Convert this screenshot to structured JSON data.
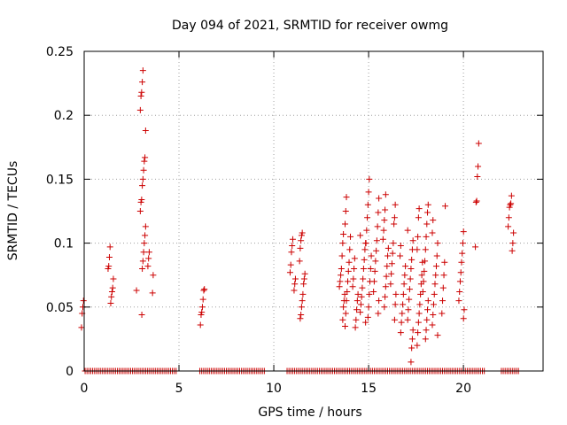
{
  "chart_data": {
    "type": "scatter",
    "title": "Day 094 of 2021, SRMTID for receiver owmg",
    "xlabel": "GPS time / hours",
    "ylabel": "SRMTID / TECUs",
    "xlim": [
      0,
      24.2
    ],
    "ylim": [
      0,
      0.25
    ],
    "grid": true,
    "marker": "+",
    "color": "#cc0000",
    "xticks": [
      0,
      5,
      10,
      15,
      20
    ],
    "xtick_labels": [
      "0",
      "5",
      "10",
      "15",
      "20"
    ],
    "yticks": [
      0,
      0.05,
      0.1,
      0.15,
      0.2,
      0.25
    ],
    "ytick_labels": [
      "0",
      "0.05",
      "0.1",
      "0.15",
      "0.2",
      "0.25"
    ],
    "clusters": [
      {
        "x": 0.0,
        "y": [
          0.034,
          0.045,
          0.05,
          0.055
        ]
      },
      {
        "x": 1.4,
        "y": [
          0.053,
          0.058,
          0.062,
          0.065,
          0.072,
          0.08,
          0.082,
          0.089,
          0.097
        ]
      },
      {
        "x": 2.9,
        "y": [
          0.044,
          0.063
        ]
      },
      {
        "x": 3.1,
        "y": [
          0.08,
          0.086,
          0.093,
          0.1,
          0.106,
          0.113,
          0.125,
          0.132,
          0.134,
          0.145,
          0.15,
          0.157,
          0.164,
          0.167,
          0.188,
          0.204,
          0.215,
          0.218,
          0.226,
          0.235
        ]
      },
      {
        "x": 3.5,
        "y": [
          0.061,
          0.075,
          0.082,
          0.088,
          0.093
        ]
      },
      {
        "x": 6.2,
        "y": [
          0.036,
          0.044,
          0.046,
          0.05,
          0.056,
          0.063,
          0.064
        ]
      },
      {
        "x": 11.0,
        "y": [
          0.063,
          0.068,
          0.072,
          0.077,
          0.083,
          0.093,
          0.098,
          0.103
        ]
      },
      {
        "x": 11.5,
        "y": [
          0.041,
          0.044,
          0.05,
          0.055,
          0.06,
          0.068,
          0.072,
          0.076,
          0.086,
          0.096,
          0.102,
          0.106,
          0.108
        ]
      },
      {
        "x": 13.6,
        "y": [
          0.04,
          0.05,
          0.055,
          0.06,
          0.066,
          0.07,
          0.075,
          0.08,
          0.09,
          0.1,
          0.107
        ]
      },
      {
        "x": 13.9,
        "y": [
          0.035,
          0.045,
          0.055,
          0.062,
          0.07,
          0.078,
          0.085,
          0.095,
          0.105,
          0.115,
          0.125,
          0.136
        ]
      },
      {
        "x": 14.3,
        "y": [
          0.034,
          0.04,
          0.048,
          0.055,
          0.06,
          0.066,
          0.072,
          0.08,
          0.088
        ]
      },
      {
        "x": 14.7,
        "y": [
          0.038,
          0.046,
          0.052,
          0.058,
          0.065,
          0.072,
          0.08,
          0.087,
          0.095,
          0.1,
          0.106
        ]
      },
      {
        "x": 15.0,
        "y": [
          0.042,
          0.05,
          0.06,
          0.07,
          0.08,
          0.09,
          0.1,
          0.11,
          0.12,
          0.13,
          0.14,
          0.15
        ]
      },
      {
        "x": 15.4,
        "y": [
          0.045,
          0.055,
          0.062,
          0.07,
          0.078,
          0.086,
          0.094,
          0.102,
          0.113,
          0.124,
          0.135
        ]
      },
      {
        "x": 15.9,
        "y": [
          0.05,
          0.058,
          0.066,
          0.074,
          0.082,
          0.09,
          0.096,
          0.103,
          0.11,
          0.118,
          0.126,
          0.138
        ]
      },
      {
        "x": 16.3,
        "y": [
          0.04,
          0.052,
          0.06,
          0.068,
          0.076,
          0.084,
          0.092,
          0.1,
          0.115,
          0.12,
          0.13
        ]
      },
      {
        "x": 16.8,
        "y": [
          0.03,
          0.038,
          0.045,
          0.052,
          0.06,
          0.068,
          0.075,
          0.082,
          0.09,
          0.098
        ]
      },
      {
        "x": 17.2,
        "y": [
          0.007,
          0.018,
          0.025,
          0.032,
          0.04,
          0.048,
          0.056,
          0.064,
          0.072,
          0.08,
          0.087,
          0.095,
          0.102,
          0.11
        ]
      },
      {
        "x": 17.7,
        "y": [
          0.02,
          0.03,
          0.038,
          0.045,
          0.052,
          0.06,
          0.068,
          0.075,
          0.085,
          0.095,
          0.105,
          0.12,
          0.127
        ]
      },
      {
        "x": 18.0,
        "y": [
          0.025,
          0.032,
          0.04,
          0.048,
          0.055,
          0.062,
          0.07,
          0.078,
          0.086,
          0.095,
          0.105,
          0.115,
          0.124,
          0.13
        ]
      },
      {
        "x": 18.5,
        "y": [
          0.028,
          0.036,
          0.044,
          0.052,
          0.06,
          0.068,
          0.075,
          0.082,
          0.09,
          0.1,
          0.108,
          0.118
        ]
      },
      {
        "x": 18.9,
        "y": [
          0.045,
          0.055,
          0.065,
          0.075,
          0.085,
          0.129
        ]
      },
      {
        "x": 19.9,
        "y": [
          0.041,
          0.048,
          0.055,
          0.062,
          0.07,
          0.077,
          0.085,
          0.092,
          0.1,
          0.109
        ]
      },
      {
        "x": 20.7,
        "y": [
          0.097,
          0.132,
          0.133,
          0.152,
          0.16,
          0.178
        ]
      },
      {
        "x": 22.5,
        "y": [
          0.094,
          0.1,
          0.108,
          0.113,
          0.12,
          0.128,
          0.13,
          0.131,
          0.137
        ]
      }
    ],
    "zero_points": [
      0.05,
      0.15,
      0.25,
      0.35,
      0.45,
      0.55,
      0.65,
      0.75,
      0.85,
      0.95,
      1.05,
      1.15,
      1.25,
      1.35,
      1.45,
      1.55,
      1.65,
      1.75,
      1.85,
      1.95,
      2.05,
      2.15,
      2.25,
      2.35,
      2.45,
      2.55,
      2.65,
      2.75,
      2.85,
      2.95,
      3.05,
      3.15,
      3.25,
      3.35,
      3.45,
      3.55,
      3.65,
      3.75,
      3.85,
      3.95,
      4.05,
      4.15,
      4.25,
      4.35,
      4.45,
      4.55,
      4.65,
      4.75,
      4.85,
      6.1,
      6.2,
      6.3,
      6.4,
      6.5,
      6.6,
      6.7,
      6.8,
      6.9,
      7.0,
      7.1,
      7.2,
      7.3,
      7.4,
      7.5,
      7.6,
      7.7,
      7.8,
      7.9,
      8.0,
      8.1,
      8.2,
      8.3,
      8.4,
      8.5,
      8.6,
      8.7,
      8.8,
      8.9,
      9.0,
      9.1,
      9.2,
      9.3,
      9.4,
      9.5,
      10.7,
      10.8,
      10.9,
      11.0,
      11.1,
      11.2,
      11.3,
      11.4,
      11.5,
      11.6,
      11.7,
      11.8,
      11.9,
      12.0,
      12.1,
      12.2,
      12.3,
      12.4,
      12.5,
      12.6,
      12.7,
      12.8,
      12.9,
      13.0,
      13.1,
      13.2,
      13.3,
      13.4,
      13.5,
      13.6,
      13.7,
      13.8,
      13.9,
      14.0,
      14.1,
      14.2,
      14.3,
      14.4,
      14.5,
      14.6,
      14.7,
      14.8,
      14.9,
      15.0,
      15.1,
      15.2,
      15.3,
      15.4,
      15.5,
      15.6,
      15.7,
      15.8,
      15.9,
      16.0,
      16.1,
      16.2,
      16.3,
      16.4,
      16.5,
      16.6,
      16.7,
      16.8,
      16.9,
      17.0,
      17.1,
      17.2,
      17.3,
      17.4,
      17.5,
      17.6,
      17.7,
      17.8,
      17.9,
      18.0,
      18.1,
      18.2,
      18.3,
      18.4,
      18.5,
      18.6,
      18.7,
      18.8,
      18.9,
      19.0,
      19.1,
      19.2,
      19.3,
      19.4,
      19.5,
      19.6,
      19.7,
      19.8,
      19.9,
      20.0,
      20.1,
      20.2,
      20.3,
      20.4,
      20.5,
      20.6,
      20.7,
      20.8,
      20.9,
      21.0,
      21.1,
      22.0,
      22.1,
      22.2,
      22.3,
      22.4,
      22.5,
      22.6,
      22.7,
      22.8,
      22.9
    ]
  }
}
